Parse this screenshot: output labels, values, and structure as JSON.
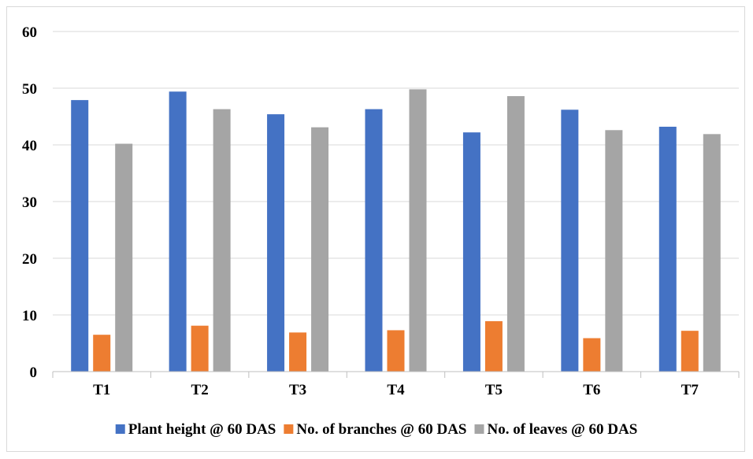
{
  "chart_data": {
    "type": "bar",
    "title": "",
    "xlabel": "",
    "ylabel": "",
    "ylim": [
      0,
      60
    ],
    "yticks": [
      0,
      10,
      20,
      30,
      40,
      50,
      60
    ],
    "grid": "horizontal",
    "legend_position": "bottom",
    "categories": [
      "T1",
      "T2",
      "T3",
      "T4",
      "T5",
      "T6",
      "T7"
    ],
    "series": [
      {
        "name": "Plant height @ 60 DAS",
        "color": "#4472c4",
        "values": [
          47.9,
          49.4,
          45.4,
          46.3,
          42.2,
          46.2,
          43.2
        ]
      },
      {
        "name": "No. of branches @ 60 DAS",
        "color": "#ed7d31",
        "values": [
          6.5,
          8.1,
          6.9,
          7.3,
          8.9,
          5.9,
          7.2
        ]
      },
      {
        "name": "No. of leaves @ 60 DAS",
        "color": "#a5a5a5",
        "values": [
          40.2,
          46.3,
          43.1,
          49.8,
          48.6,
          42.6,
          41.9
        ]
      }
    ]
  }
}
